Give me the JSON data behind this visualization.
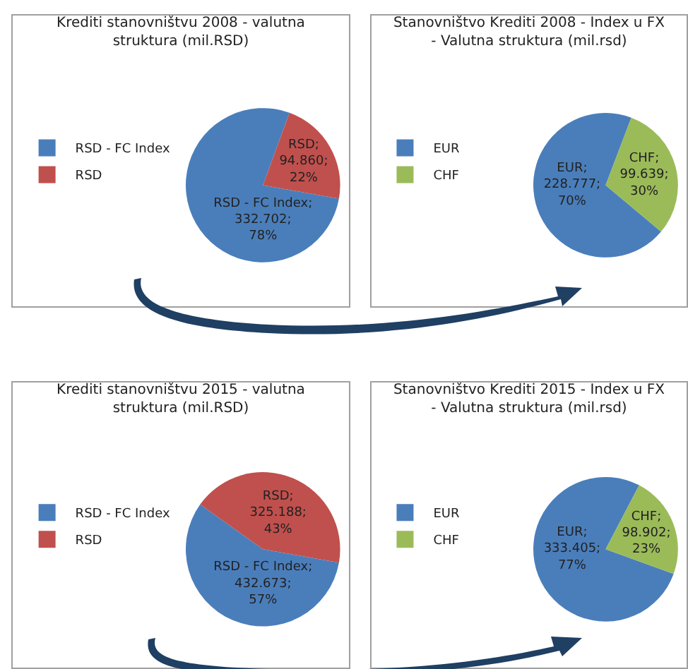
{
  "chart_data": [
    {
      "type": "pie",
      "title": "Krediti stanovništvu 2008 - valutna struktura (mil.RSD)",
      "categories": [
        "RSD - FC Index",
        "RSD"
      ],
      "values": [
        332702,
        94860
      ],
      "colors": [
        "#4a7ebb",
        "#c0504d"
      ],
      "value_labels": [
        "RSD - FC Index; 332.702; 78%",
        "RSD; 94.860; 22%"
      ],
      "legend": "left"
    },
    {
      "type": "pie",
      "title": "Stanovništvo Krediti 2008 - Index u FX - Valutna struktura (mil.rsd)",
      "categories": [
        "EUR",
        "CHF"
      ],
      "values": [
        228777,
        99639
      ],
      "colors": [
        "#4a7ebb",
        "#9bbb59"
      ],
      "value_labels": [
        "EUR; 228.777; 70%",
        "CHF; 99.639; 30%"
      ],
      "legend": "left"
    },
    {
      "type": "pie",
      "title": "Krediti stanovništvu 2015 - valutna struktura (mil.RSD)",
      "categories": [
        "RSD - FC Index",
        "RSD"
      ],
      "values": [
        432673,
        325188
      ],
      "colors": [
        "#4a7ebb",
        "#c0504d"
      ],
      "value_labels": [
        "RSD - FC Index; 432.673; 57%",
        "RSD; 325.188; 43%"
      ],
      "legend": "left"
    },
    {
      "type": "pie",
      "title": "Stanovništvo Krediti 2015 - Index u FX - Valutna struktura (mil.rsd)",
      "categories": [
        "EUR",
        "CHF"
      ],
      "values": [
        333405,
        98902
      ],
      "colors": [
        "#4a7ebb",
        "#9bbb59"
      ],
      "value_labels": [
        "EUR; 333.405; 77%",
        "CHF; 98.902; 23%"
      ],
      "legend": "left"
    }
  ]
}
